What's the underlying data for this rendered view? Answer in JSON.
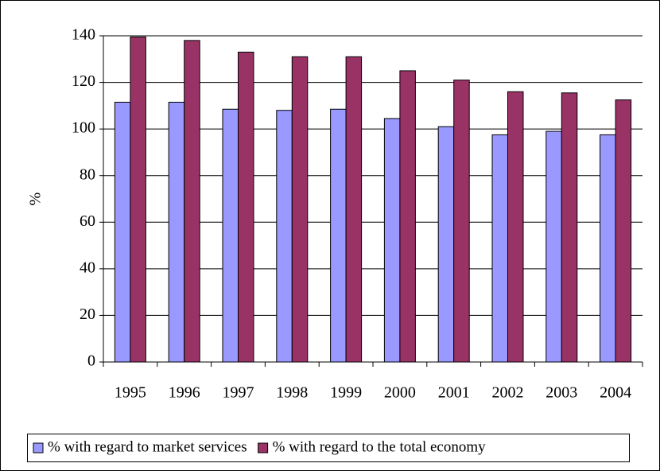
{
  "chart_data": {
    "type": "bar",
    "y_label": "%",
    "categories": [
      "1995",
      "1996",
      "1997",
      "1998",
      "1999",
      "2000",
      "2001",
      "2002",
      "2003",
      "2004"
    ],
    "series": [
      {
        "name": "% with regard to market services",
        "color": "#9999ff",
        "values": [
          111.5,
          111.5,
          108.5,
          108,
          108.5,
          104.5,
          101,
          97.5,
          99,
          97.5
        ]
      },
      {
        "name": "% with regard to the total economy",
        "color": "#993366",
        "values": [
          139.5,
          138,
          133,
          131,
          131,
          125,
          121,
          116,
          115.5,
          112.5
        ]
      }
    ],
    "ylim": [
      0,
      140
    ],
    "yticks": [
      0,
      20,
      40,
      60,
      80,
      100,
      120,
      140
    ],
    "grid": true,
    "legend": "bottom"
  }
}
